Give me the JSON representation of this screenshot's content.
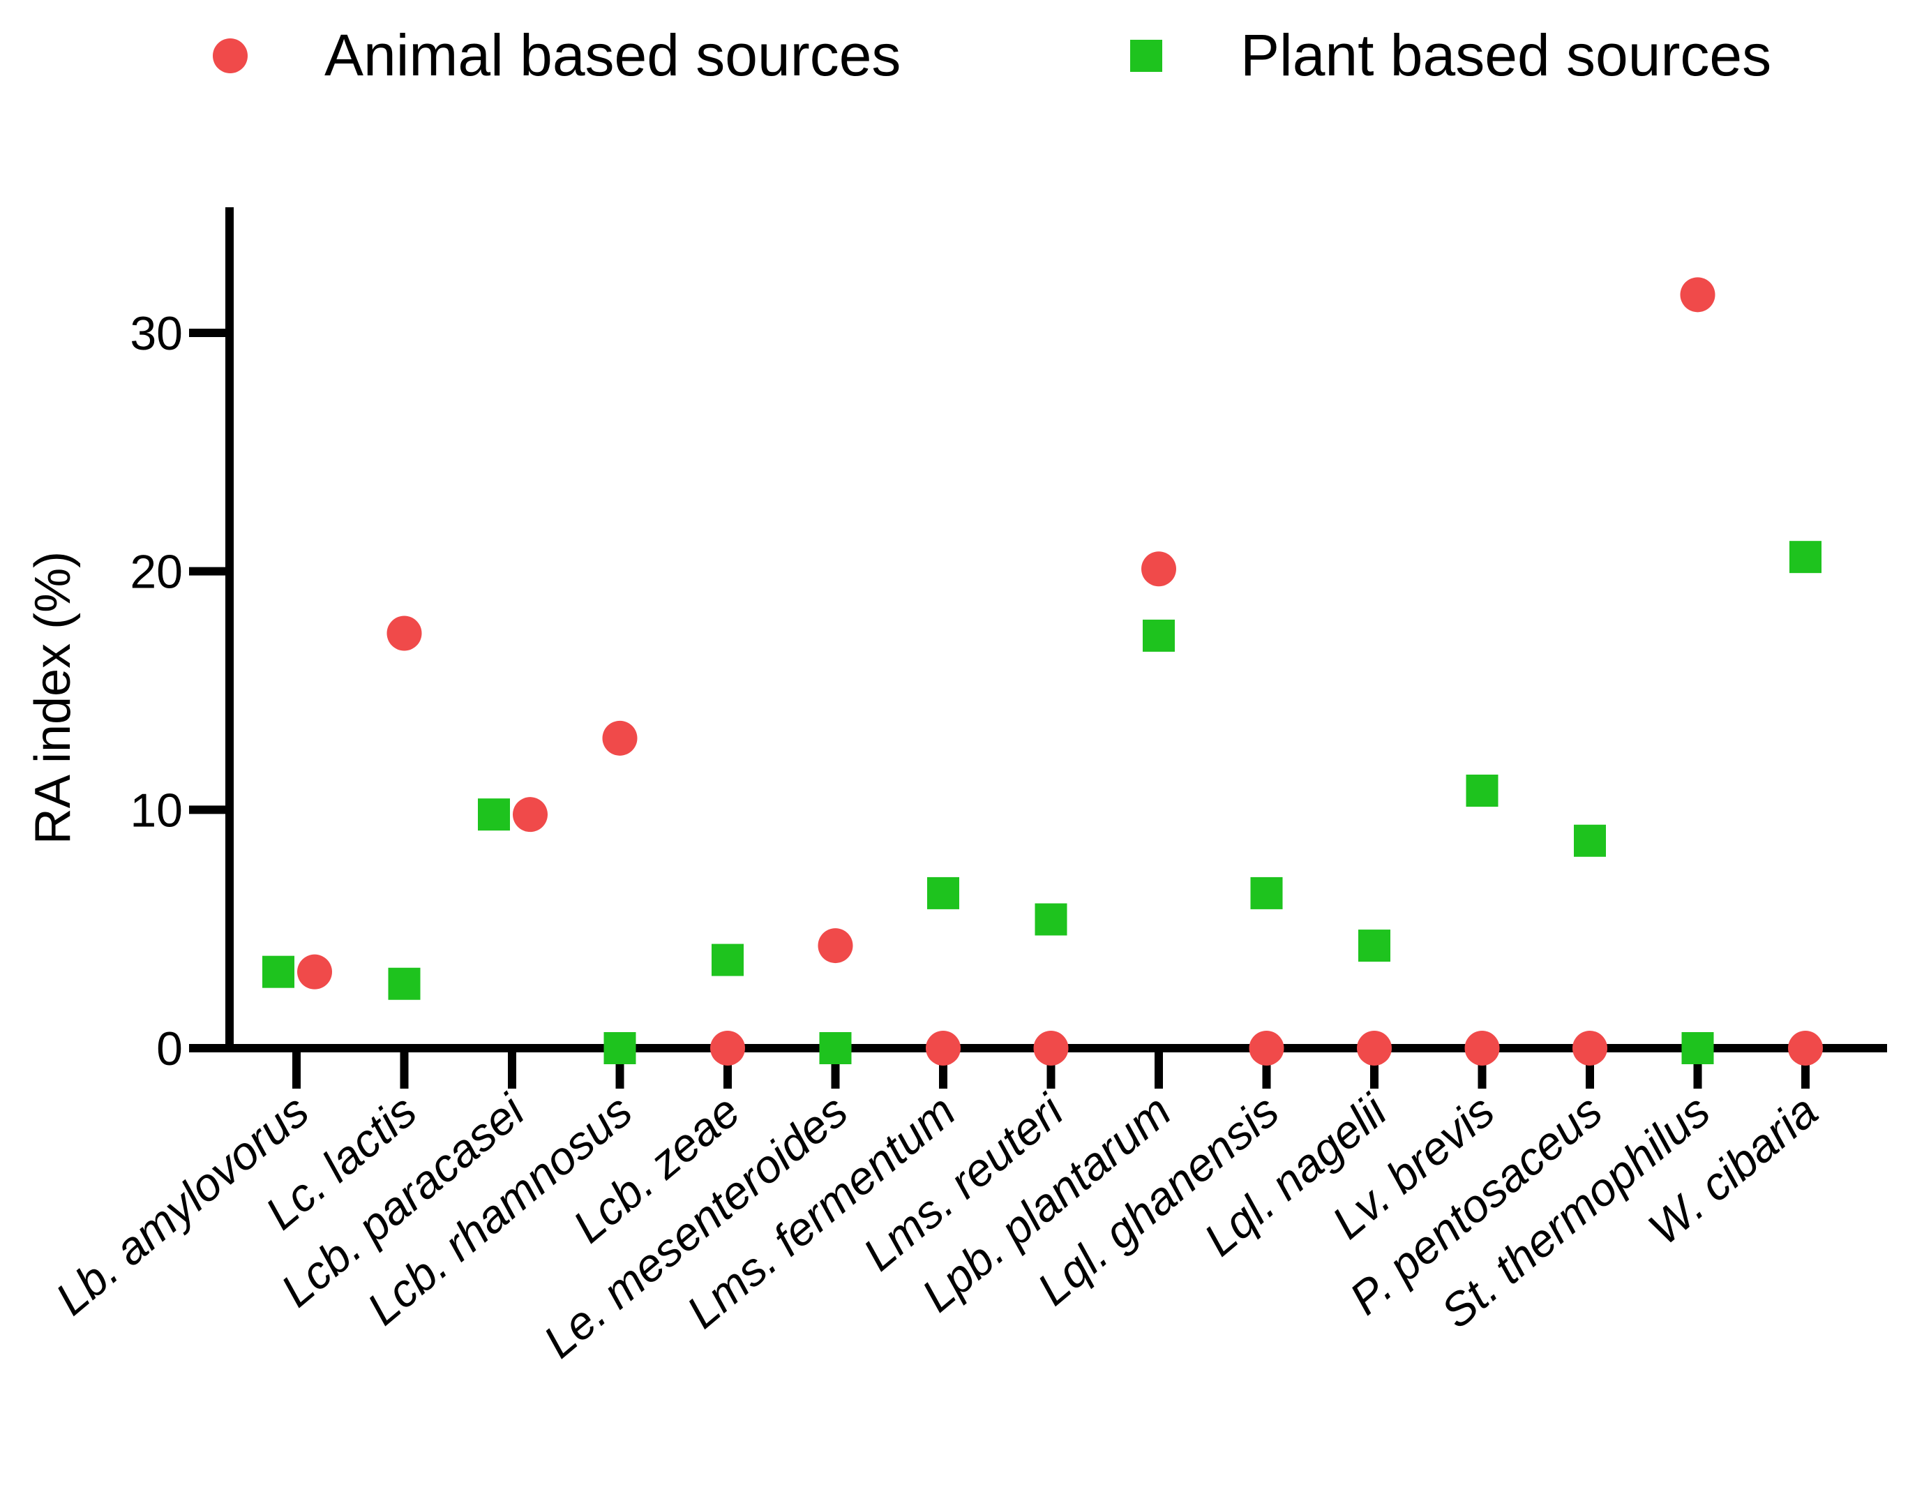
{
  "chart_data": {
    "type": "scatter",
    "title": "",
    "xlabel": "",
    "ylabel": "RA index (%)",
    "ylim": [
      0,
      35
    ],
    "yticks": [
      0,
      10,
      20,
      30
    ],
    "grid": false,
    "legend_position": "top",
    "categories": [
      "Lb. amylovorus",
      "Lc. lactis",
      "Lcb. paracasei",
      "Lcb. rhamnosus",
      "Lcb. zeae",
      "Le. mesenteroides",
      "Lms. fermentum",
      "Lms. reuteri",
      "Lpb. plantarum",
      "Lql. ghanensis",
      "Lql. nagelii",
      "Lv. brevis",
      "P. pentosaceus",
      "St. thermophilus",
      "W. cibaria"
    ],
    "series": [
      {
        "name": "Animal based sources",
        "marker": "circle",
        "color": "#f04a4a",
        "values": [
          3.2,
          17.4,
          9.8,
          13.0,
          0,
          4.3,
          0,
          0,
          20.1,
          0,
          0,
          0,
          0,
          31.6,
          0
        ]
      },
      {
        "name": "Plant based sources",
        "marker": "square",
        "color": "#1ec31e",
        "values": [
          3.2,
          2.7,
          9.8,
          0,
          3.7,
          0,
          6.5,
          5.4,
          17.3,
          6.5,
          4.3,
          10.8,
          8.7,
          0,
          20.6
        ]
      }
    ]
  }
}
